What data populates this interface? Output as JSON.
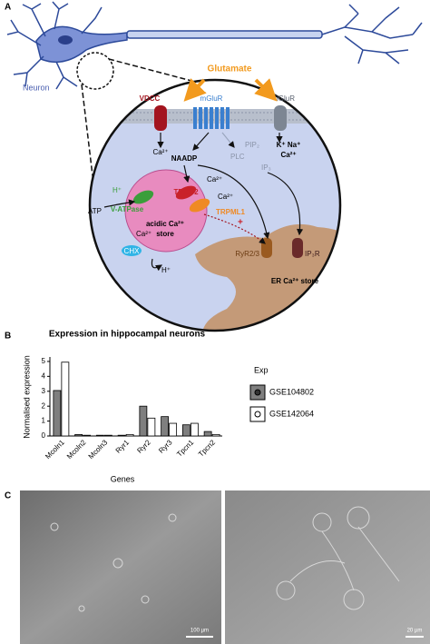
{
  "panel_a": {
    "label": "A",
    "neuron": "Neuron",
    "glutamate": "Glutamate",
    "vdcc": "VDCC",
    "mglur": "mGluR",
    "iglur": "iGluR",
    "ca_vdcc": "Ca²⁺",
    "ions_iglur": "K⁺ Na⁺",
    "ca_iglur": "Ca²⁺",
    "naadp": "NAADP",
    "pip2": "PIP₂",
    "plc": "PLC",
    "ip3": "IP₃",
    "h_top": "H⁺",
    "tpc": "TPC1/2",
    "ca_tpc": "Ca²⁺",
    "vatpase": "V-ATPase",
    "trpml": "TRPML1",
    "ca_trpml": "Ca²⁺",
    "atp": "ATP",
    "store_line1": "acidic Ca²⁺",
    "store_line2": "store",
    "plus": "+",
    "ryr": "RyR2/3",
    "ip3r": "IP₃R",
    "er": "ER Ca²⁺ store",
    "ca_chx": "Ca²⁺",
    "chx": "CHX",
    "h_bottom": "H⁺"
  },
  "chart_data": {
    "type": "bar",
    "panel_label": "B",
    "title": "Expression in hippocampal neurons",
    "y_label": "Normalised expression",
    "x_label": "Genes",
    "legend_title": "Exp",
    "categories": [
      "Mcoln1",
      "Mcoln2",
      "Mcoln3",
      "Ryr1",
      "Ryr2",
      "Ryr3",
      "Tpcn1",
      "Tpcn2"
    ],
    "series": [
      {
        "name": "GSE104802",
        "color": "#7f7f7f",
        "values": [
          3.05,
          0.1,
          0.05,
          0.05,
          2.0,
          1.3,
          0.75,
          0.3
        ]
      },
      {
        "name": "GSE142064",
        "color": "#ffffff",
        "values": [
          4.95,
          0.05,
          0.05,
          0.1,
          1.2,
          0.85,
          0.85,
          0.1
        ]
      }
    ],
    "ylim": [
      0,
      5.3
    ],
    "yticks": [
      0,
      1,
      2,
      3,
      4,
      5
    ]
  },
  "panel_c": {
    "label": "C",
    "scale_left": "100 µm",
    "scale_right": "20 µm"
  }
}
